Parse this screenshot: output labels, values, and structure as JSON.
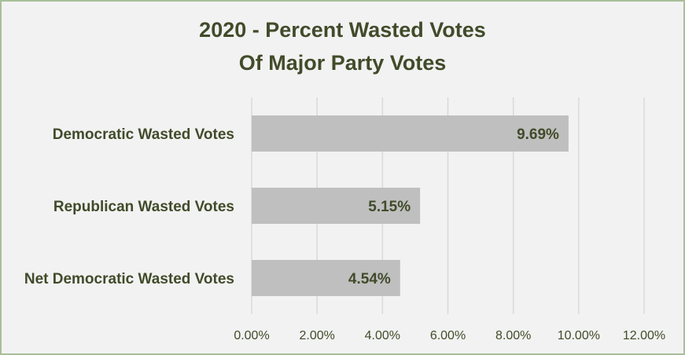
{
  "chart_data": {
    "type": "bar",
    "orientation": "horizontal",
    "title_lines": [
      "2020 - Percent Wasted Votes",
      "Of Major Party Votes"
    ],
    "categories": [
      "Democratic Wasted Votes",
      "Republican Wasted Votes",
      "Net Democratic Wasted Votes"
    ],
    "values": [
      9.69,
      5.15,
      4.54
    ],
    "data_labels": [
      "9.69%",
      "5.15%",
      "4.54%"
    ],
    "xlim": [
      0,
      12
    ],
    "x_ticks": [
      0,
      2,
      4,
      6,
      8,
      10,
      12
    ],
    "x_tick_labels": [
      "0.00%",
      "2.00%",
      "4.00%",
      "6.00%",
      "8.00%",
      "10.00%",
      "12.00%"
    ],
    "xlabel": "",
    "ylabel": "",
    "grid": true,
    "legend": "none",
    "colors": {
      "bar": "#bfbfbf",
      "text": "#414b2a",
      "gridline": "#d9d9d9",
      "background": "#f2f2f2",
      "border": "#a9bf98"
    }
  }
}
